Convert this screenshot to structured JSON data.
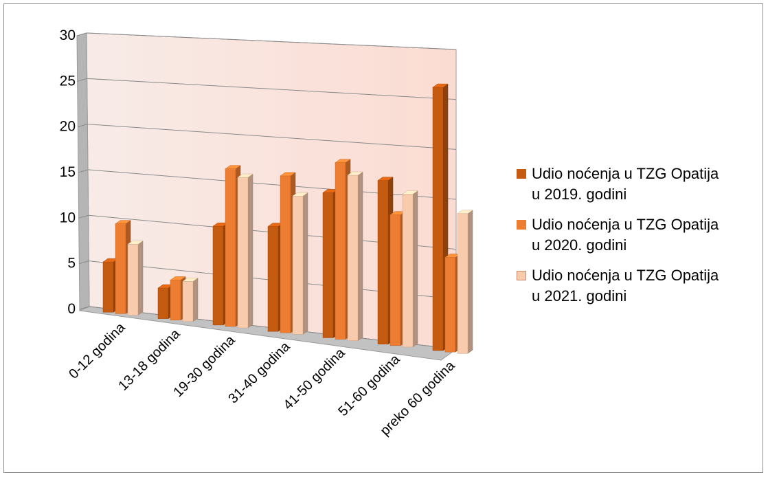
{
  "chart_data": {
    "type": "bar",
    "style": "3d-clustered-column",
    "categories": [
      "0-12 godina",
      "13-18 godina",
      "19-30 godina",
      "31-40 godina",
      "41-50 godina",
      "51-60 godina",
      "preko 60 godina"
    ],
    "series": [
      {
        "name": "Udio noćenja u TZG Opatija u 2019. godini",
        "name_lines": [
          "Udio noćenja u TZG Opatija",
          "u 2019. godini"
        ],
        "color": "#C55A11",
        "values": [
          5.5,
          3.3,
          10.5,
          11.0,
          15.0,
          16.7,
          26.5
        ]
      },
      {
        "name": "Udio noćenja u TZG Opatija u 2020. godini",
        "name_lines": [
          "Udio noćenja u TZG Opatija",
          "u 2020. godini"
        ],
        "color": "#ED7D31",
        "values": [
          9.8,
          4.3,
          16.7,
          16.4,
          18.2,
          13.3,
          9.5
        ]
      },
      {
        "name": "Udio noćenja u TZG Opatija u 2021. godini",
        "name_lines": [
          "Udio noćenja u TZG Opatija",
          "u 2021. godini"
        ],
        "color": "#F8CBAD",
        "values": [
          7.7,
          4.3,
          15.9,
          14.4,
          17.0,
          15.5,
          14.0
        ]
      }
    ],
    "yticks": [
      "0",
      "5",
      "10",
      "15",
      "20",
      "25",
      "30"
    ],
    "ylim": [
      0,
      30
    ],
    "grid": true,
    "legend_position": "right"
  }
}
